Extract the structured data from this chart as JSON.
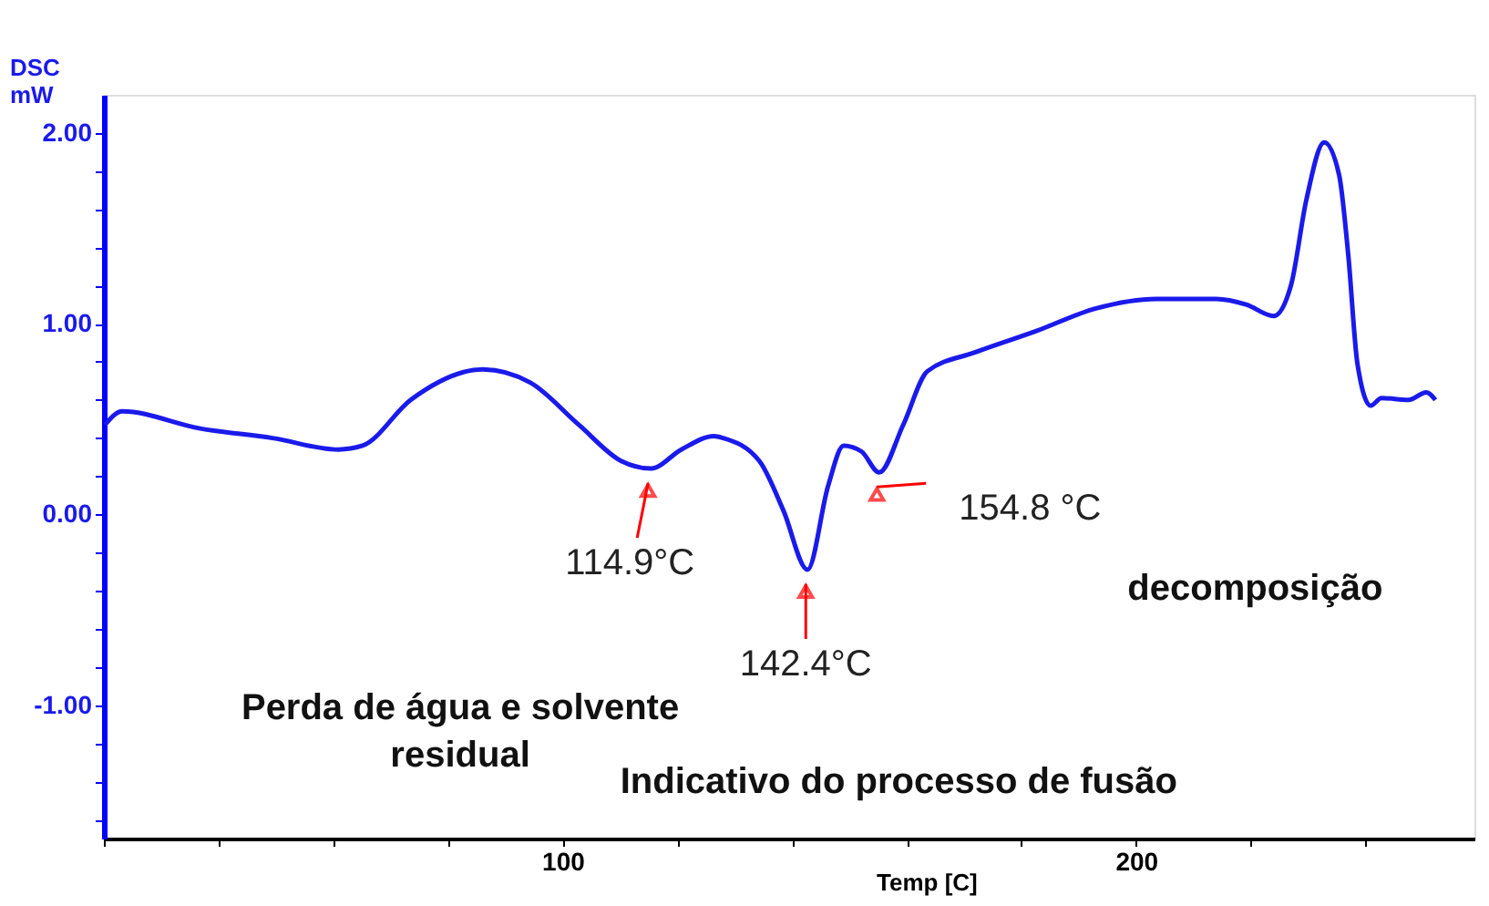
{
  "chart_data": {
    "type": "line",
    "xlabel": "Temp  [C]",
    "ylabel": "DSC\nmW",
    "xlim": [
      20,
      259
    ],
    "ylim": [
      -1.7,
      2.2
    ],
    "xticks": [
      {
        "value": 20,
        "label": null
      },
      {
        "value": 40,
        "label": null
      },
      {
        "value": 60,
        "label": null
      },
      {
        "value": 80,
        "label": null
      },
      100,
      {
        "value": 120,
        "label": null
      },
      {
        "value": 140,
        "label": null
      },
      {
        "value": 160,
        "label": null
      },
      {
        "value": 180,
        "label": null
      },
      200,
      {
        "value": 220,
        "label": null
      },
      {
        "value": 240,
        "label": null
      }
    ],
    "yticks": [
      {
        "value": -1.6,
        "label": null
      },
      {
        "value": -1.4,
        "label": null
      },
      {
        "value": -1.2,
        "label": null
      },
      {
        "value": -1.0,
        "label": "-1.00"
      },
      {
        "value": -0.8,
        "label": null
      },
      {
        "value": -0.6,
        "label": null
      },
      {
        "value": -0.4,
        "label": null
      },
      {
        "value": -0.2,
        "label": null
      },
      {
        "value": 0,
        "label": "0.00"
      },
      {
        "value": 0.2,
        "label": null
      },
      {
        "value": 0.4,
        "label": null
      },
      {
        "value": 0.6,
        "label": null
      },
      {
        "value": 0.8,
        "label": null
      },
      {
        "value": 1.0,
        "label": "1.00"
      },
      {
        "value": 1.2,
        "label": null
      },
      {
        "value": 1.4,
        "label": null
      },
      {
        "value": 1.6,
        "label": null
      },
      {
        "value": 1.8,
        "label": null
      },
      {
        "value": 2.0,
        "label": "2.00"
      }
    ],
    "grid": false,
    "marker": "none",
    "line_style": "solid",
    "series": [
      {
        "color": "#1a1aeb",
        "x": [
          20.2,
          23.2,
          36.8,
          49.4,
          60.9,
          65.1,
          73.5,
          86.1,
          94.4,
          102.8,
          110.2,
          115.4,
          120.7,
          126.4,
          128.0,
          134.3,
          138.5,
          142.7,
          146.3,
          149.0,
          152.1,
          155.2,
          159.4,
          163.6,
          172.0,
          182.5,
          193.0,
          203.5,
          214.0,
          219.2,
          224.0,
          227.0,
          229.7,
          232.8,
          235.4,
          237.0,
          238.6,
          240.9,
          242.8,
          247.5,
          250.6,
          252.2
        ],
        "values": [
          0.47,
          0.54,
          0.45,
          0.4,
          0.34,
          0.36,
          0.6,
          0.76,
          0.69,
          0.47,
          0.28,
          0.24,
          0.34,
          0.41,
          0.4,
          0.28,
          0.02,
          -0.29,
          0.15,
          0.36,
          0.33,
          0.22,
          0.47,
          0.75,
          0.85,
          0.96,
          1.08,
          1.13,
          1.13,
          1.1,
          1.04,
          1.2,
          1.65,
          1.95,
          1.78,
          1.36,
          0.79,
          0.57,
          0.61,
          0.6,
          0.64,
          0.6
        ]
      }
    ],
    "annotations": [
      {
        "text": "114.9°C",
        "x": 114.9,
        "y": 0.24
      },
      {
        "text": "142.4°C",
        "x": 142.4,
        "y": -0.29
      },
      {
        "text": "154.8 °C",
        "x": 154.8,
        "y": 0.22
      },
      "Perda de água e solvente\nresidual",
      "Indicativo do processo de fusão",
      "decomposição"
    ]
  }
}
